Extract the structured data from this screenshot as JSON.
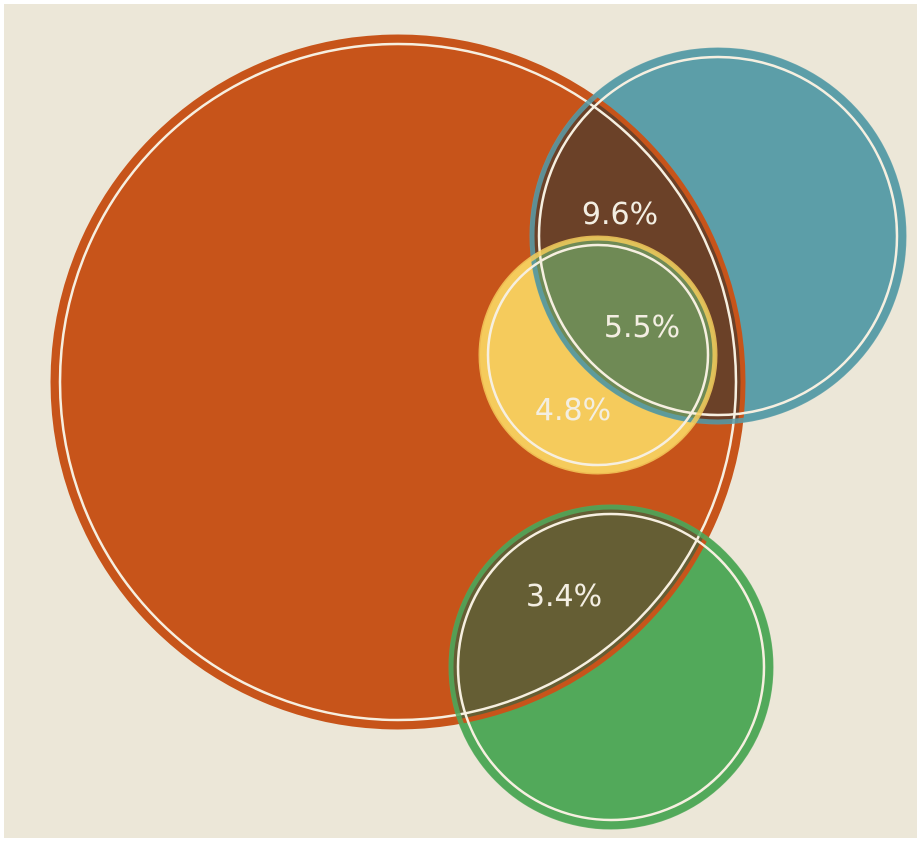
{
  "colors": {
    "background": "#ece7d8",
    "outer_border": "#ffffff",
    "ring": "#f6efe0",
    "orange": "#c7541a",
    "blue": "#5c9ea8",
    "yellow": "#f5cb5c",
    "green": "#52a95a",
    "overlap_orange_blue": "#6b4128",
    "overlap_triple": "#6f8a55",
    "overlap_orange_green": "#655e34"
  },
  "overlap_labels": {
    "orange_blue": "9.6%",
    "orange_blue_yellow": "5.5%",
    "orange_yellow": "4.8%",
    "orange_green": "3.4%"
  }
}
